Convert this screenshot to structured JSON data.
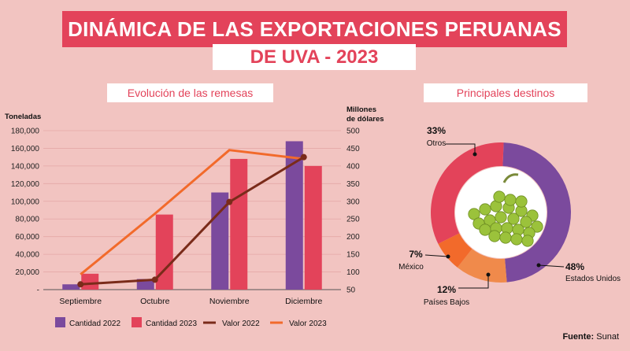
{
  "header": {
    "title": "DINÁMICA DE LAS EXPORTACIONES PERUANAS",
    "subtitle": "DE UVA - 2023"
  },
  "sections": {
    "left": "Evolución de las remesas",
    "right": "Principales destinos"
  },
  "axes": {
    "left_title": "Toneladas",
    "right_title_1": "Millones",
    "right_title_2": "de dólares"
  },
  "source": {
    "label": "Fuente:",
    "value": "Sunat"
  },
  "colors": {
    "c2022": "#7b4a9d",
    "c2023": "#e3435a",
    "v2022": "#7a2b1a",
    "v2023": "#f26a2b",
    "mexico": "#f26a2b",
    "paises_bajos": "#f08a4b",
    "otros": "#e3435a",
    "usa": "#7b4a9d"
  },
  "chart_data": [
    {
      "type": "bar",
      "categories": [
        "Septiembre",
        "Octubre",
        "Noviembre",
        "Diciembre"
      ],
      "left_axis": {
        "label": "Toneladas",
        "ylim": [
          0,
          180000
        ],
        "ticks": [
          "-",
          "20,000",
          "40,000",
          "60,000",
          "80,000",
          "100,000",
          "120,000",
          "140,000",
          "160,000",
          "180,000"
        ]
      },
      "right_axis": {
        "label": "Millones de dólares",
        "ylim": [
          50,
          500
        ],
        "ticks": [
          "50",
          "100",
          "150",
          "200",
          "250",
          "300",
          "350",
          "400",
          "450",
          "500"
        ]
      },
      "series": [
        {
          "name": "Cantidad 2022",
          "kind": "bar",
          "axis": "left",
          "values": [
            6000,
            12000,
            110000,
            168000
          ]
        },
        {
          "name": "Cantidad 2023",
          "kind": "bar",
          "axis": "left",
          "values": [
            18000,
            85000,
            148000,
            140000
          ]
        },
        {
          "name": "Valor 2022",
          "kind": "line",
          "axis": "right",
          "values": [
            65,
            78,
            298,
            425
          ]
        },
        {
          "name": "Valor 2023",
          "kind": "line",
          "axis": "right",
          "values": [
            93,
            265,
            445,
            420
          ]
        }
      ],
      "grid": true,
      "legend": "bottom"
    },
    {
      "type": "pie",
      "donut": true,
      "slices": [
        {
          "name": "Estados Unidos",
          "label": "48%",
          "value": 48
        },
        {
          "name": "Países Bajos",
          "label": "12%",
          "value": 12
        },
        {
          "name": "México",
          "label": "7%",
          "value": 7
        },
        {
          "name": "Otros",
          "label": "33%",
          "value": 33
        }
      ]
    }
  ]
}
